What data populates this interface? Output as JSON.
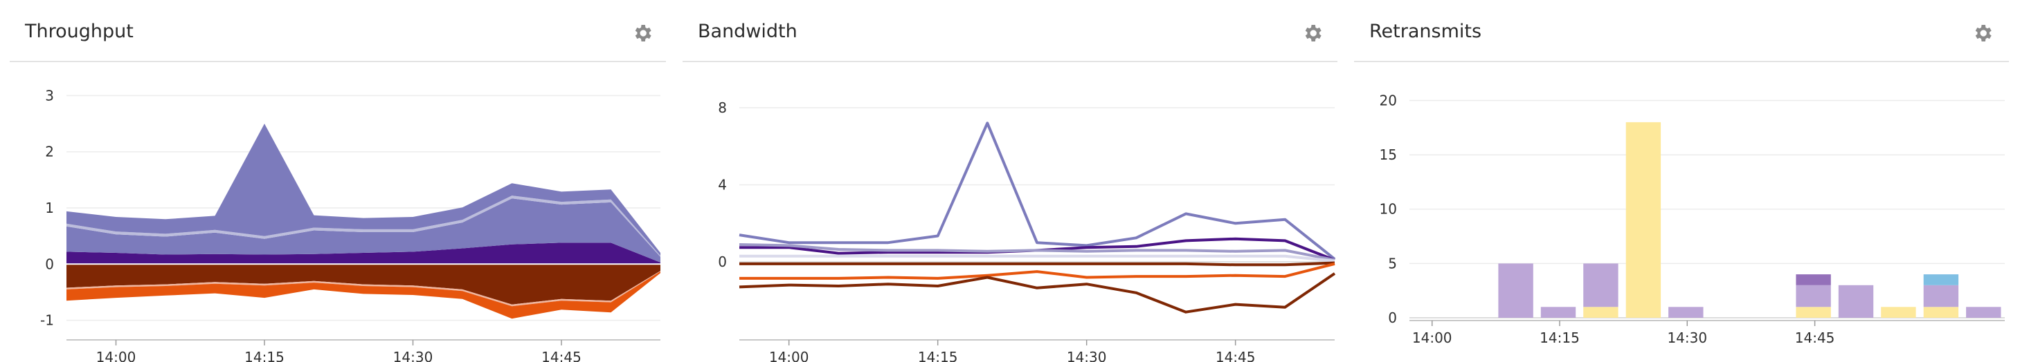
{
  "panels": [
    {
      "title": "Throughput",
      "settings_icon": "gear-icon"
    },
    {
      "title": "Bandwidth",
      "settings_icon": "gear-icon"
    },
    {
      "title": "Retransmits",
      "settings_icon": "gear-icon"
    }
  ],
  "chart_data": [
    {
      "type": "area",
      "title": "Throughput",
      "x": [
        "13:55",
        "14:00",
        "14:05",
        "14:10",
        "14:15",
        "14:20",
        "14:25",
        "14:30",
        "14:35",
        "14:40",
        "14:45",
        "14:50",
        "14:55"
      ],
      "x_ticks": [
        "14:00",
        "14:15",
        "14:30",
        "14:45"
      ],
      "y_ticks": [
        "3",
        "2",
        "1",
        "0",
        "-1"
      ],
      "ylim": [
        -1.3,
        3.3
      ],
      "grid": true,
      "series": [
        {
          "color": "#4a1486",
          "values": [
            0.22,
            0.2,
            0.17,
            0.18,
            0.17,
            0.18,
            0.2,
            0.22,
            0.28,
            0.35,
            0.38,
            0.38,
            0.03
          ]
        },
        {
          "color": "#7c7bbc",
          "values": [
            0.45,
            0.33,
            0.32,
            0.38,
            0.28,
            0.42,
            0.37,
            0.35,
            0.46,
            0.82,
            0.68,
            0.72,
            0.1
          ]
        },
        {
          "color": "#bcbddc",
          "values": [
            0.05,
            0.05,
            0.05,
            0.05,
            0.05,
            0.05,
            0.05,
            0.05,
            0.05,
            0.05,
            0.05,
            0.05,
            0.02
          ]
        },
        {
          "color": "#7c7bbc",
          "values": [
            0.22,
            0.26,
            0.26,
            0.25,
            2.0,
            0.22,
            0.2,
            0.22,
            0.22,
            0.22,
            0.18,
            0.18,
            0.05
          ]
        },
        {
          "color": "#7f2704",
          "values": [
            -0.42,
            -0.38,
            -0.36,
            -0.32,
            -0.35,
            -0.3,
            -0.36,
            -0.38,
            -0.45,
            -0.72,
            -0.62,
            -0.65,
            -0.12
          ]
        },
        {
          "color": "#f0b7a1",
          "values": [
            -0.03,
            -0.03,
            -0.03,
            -0.03,
            -0.03,
            -0.03,
            -0.03,
            -0.03,
            -0.03,
            -0.03,
            -0.03,
            -0.03,
            -0.01
          ]
        },
        {
          "color": "#e6550d",
          "values": [
            -0.2,
            -0.19,
            -0.17,
            -0.17,
            -0.22,
            -0.12,
            -0.14,
            -0.14,
            -0.14,
            -0.22,
            -0.16,
            -0.18,
            -0.03
          ]
        }
      ]
    },
    {
      "type": "line",
      "title": "Bandwidth",
      "x": [
        "13:55",
        "14:00",
        "14:05",
        "14:10",
        "14:15",
        "14:20",
        "14:25",
        "14:30",
        "14:35",
        "14:40",
        "14:45",
        "14:50",
        "14:55"
      ],
      "x_ticks": [
        "14:00",
        "14:15",
        "14:30",
        "14:45"
      ],
      "y_ticks": [
        "8",
        "4",
        "0"
      ],
      "ylim": [
        -3.9,
        9.5
      ],
      "grid": true,
      "series": [
        {
          "color": "#7c7bbc",
          "values": [
            1.4,
            1.0,
            1.0,
            1.0,
            1.35,
            7.2,
            1.0,
            0.85,
            1.25,
            2.5,
            2.0,
            2.2,
            0.15
          ]
        },
        {
          "color": "#4a1486",
          "values": [
            0.75,
            0.75,
            0.45,
            0.5,
            0.5,
            0.5,
            0.6,
            0.75,
            0.8,
            1.1,
            1.2,
            1.1,
            0.1
          ]
        },
        {
          "color": "#9e9ac8",
          "values": [
            0.9,
            0.85,
            0.65,
            0.6,
            0.6,
            0.55,
            0.6,
            0.55,
            0.6,
            0.6,
            0.55,
            0.6,
            0.1
          ]
        },
        {
          "color": "#dadaeb",
          "values": [
            0.3,
            0.3,
            0.3,
            0.3,
            0.3,
            0.3,
            0.3,
            0.3,
            0.3,
            0.3,
            0.3,
            0.3,
            0.05
          ]
        },
        {
          "color": "#7f2704",
          "values": [
            -0.1,
            -0.1,
            -0.1,
            -0.1,
            -0.1,
            -0.1,
            -0.1,
            -0.1,
            -0.1,
            -0.1,
            -0.15,
            -0.15,
            -0.05
          ]
        },
        {
          "color": "#e6550d",
          "values": [
            -0.85,
            -0.85,
            -0.85,
            -0.8,
            -0.85,
            -0.7,
            -0.5,
            -0.8,
            -0.75,
            -0.75,
            -0.7,
            -0.75,
            -0.1
          ]
        },
        {
          "color": "#7f2704",
          "values": [
            -1.3,
            -1.2,
            -1.25,
            -1.15,
            -1.25,
            -0.8,
            -1.35,
            -1.15,
            -1.6,
            -2.6,
            -2.2,
            -2.35,
            -0.6
          ]
        }
      ]
    },
    {
      "type": "bar",
      "title": "Retransmits",
      "x": [
        "13:55",
        "14:00",
        "14:05",
        "14:10",
        "14:15",
        "14:20",
        "14:25",
        "14:30",
        "14:35",
        "14:40",
        "14:45",
        "14:50",
        "14:55",
        "15:00"
      ],
      "x_ticks": [
        "14:00",
        "14:15",
        "14:30",
        "14:45"
      ],
      "y_ticks": [
        "20",
        "15",
        "10",
        "5",
        "0"
      ],
      "ylim": [
        0,
        22
      ],
      "grid": true,
      "series": [
        {
          "color": "#fde89a",
          "values": [
            0,
            0,
            0,
            0,
            1,
            18,
            0,
            0,
            0,
            1,
            0,
            1,
            1,
            0
          ]
        },
        {
          "color": "#9470b9",
          "values": [
            0,
            0,
            0,
            0,
            0,
            0,
            0,
            0,
            0,
            1,
            0,
            0,
            0,
            0
          ]
        },
        {
          "color": "#bca6d7",
          "values": [
            0,
            0,
            5,
            1,
            4,
            0,
            1,
            0,
            0,
            2,
            3,
            0,
            2,
            1
          ]
        },
        {
          "color": "#7fbfe3",
          "values": [
            0,
            0,
            0,
            0,
            0,
            0,
            0,
            0,
            0,
            0,
            0,
            0,
            1,
            0
          ]
        }
      ],
      "stack_order": [
        [
          0,
          2,
          1,
          3
        ]
      ]
    }
  ]
}
